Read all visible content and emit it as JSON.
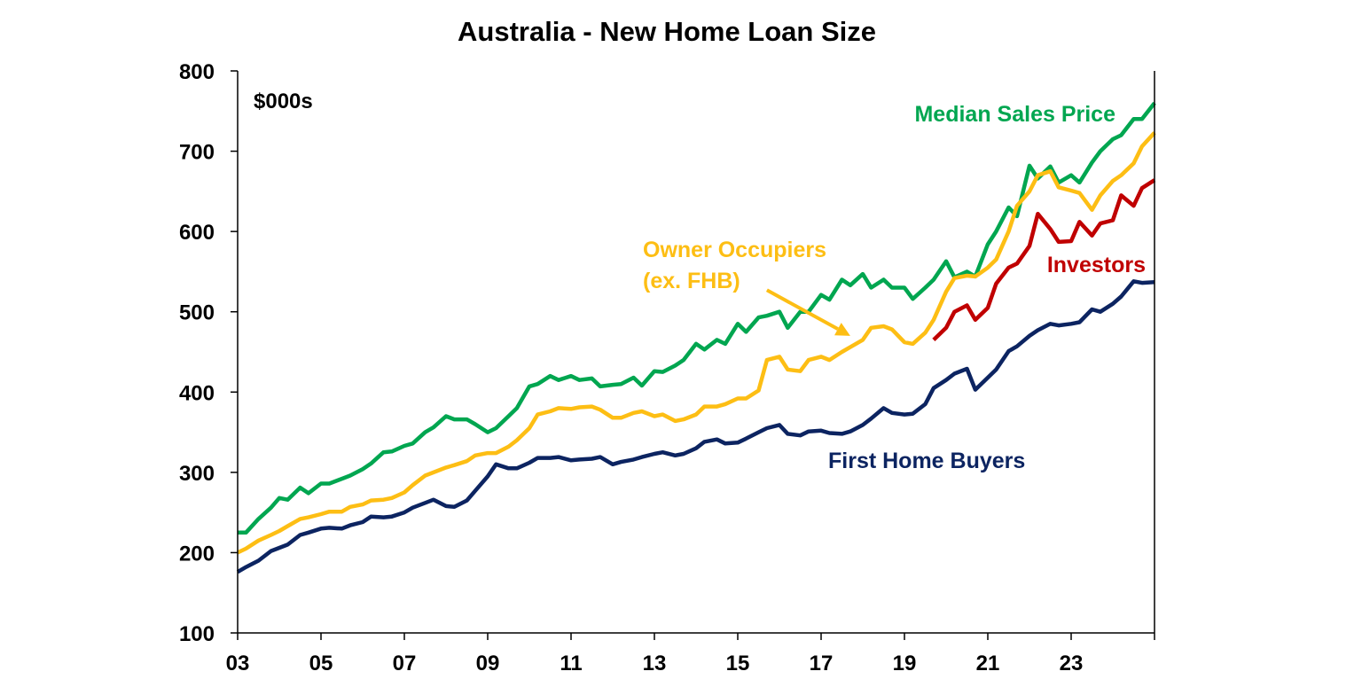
{
  "chart_data": {
    "type": "line",
    "title": "Australia - New Home Loan Size",
    "unit_label": "$000s",
    "xlabel": "",
    "ylabel": "",
    "xlim": [
      2003.0,
      2025.0
    ],
    "ylim": [
      100,
      800
    ],
    "yticks": [
      100,
      200,
      300,
      400,
      500,
      600,
      700,
      800
    ],
    "ytick_labels": [
      "100",
      "200",
      "300",
      "400",
      "500",
      "600",
      "700",
      "800"
    ],
    "xticks": [
      2003,
      2005,
      2007,
      2009,
      2011,
      2013,
      2015,
      2017,
      2019,
      2021,
      2023
    ],
    "xtick_labels": [
      "03",
      "05",
      "07",
      "09",
      "11",
      "13",
      "15",
      "17",
      "19",
      "21",
      "23"
    ],
    "grid": false,
    "legend": "none",
    "annotations": [
      {
        "text": "(ex. FHB)",
        "series": "Owner Occupiers",
        "arrow": true,
        "arrow_from": [
          2015.7,
          527
        ],
        "arrow_to": [
          2017.7,
          470
        ]
      }
    ],
    "series": [
      {
        "name": "Median Sales Price",
        "color": "#00A650",
        "x": [
          2003.0,
          2003.2,
          2003.5,
          2003.8,
          2004.0,
          2004.2,
          2004.5,
          2004.7,
          2005.0,
          2005.2,
          2005.5,
          2005.7,
          2006.0,
          2006.2,
          2006.5,
          2006.7,
          2007.0,
          2007.2,
          2007.5,
          2007.7,
          2008.0,
          2008.2,
          2008.5,
          2008.7,
          2009.0,
          2009.2,
          2009.5,
          2009.7,
          2010.0,
          2010.2,
          2010.5,
          2010.7,
          2011.0,
          2011.2,
          2011.5,
          2011.7,
          2012.0,
          2012.2,
          2012.5,
          2012.7,
          2013.0,
          2013.2,
          2013.5,
          2013.7,
          2014.0,
          2014.2,
          2014.5,
          2014.7,
          2015.0,
          2015.2,
          2015.5,
          2015.7,
          2016.0,
          2016.2,
          2016.5,
          2016.7,
          2017.0,
          2017.2,
          2017.5,
          2017.7,
          2018.0,
          2018.2,
          2018.5,
          2018.7,
          2019.0,
          2019.2,
          2019.5,
          2019.7,
          2020.0,
          2020.2,
          2020.5,
          2020.7,
          2021.0,
          2021.2,
          2021.5,
          2021.7,
          2022.0,
          2022.2,
          2022.5,
          2022.7,
          2023.0,
          2023.2,
          2023.5,
          2023.7,
          2024.0,
          2024.2,
          2024.5,
          2024.7,
          2025.0
        ],
        "values": [
          225,
          225,
          242,
          256,
          268,
          266,
          281,
          274,
          286,
          286,
          292,
          296,
          304,
          311,
          325,
          326,
          333,
          336,
          350,
          356,
          370,
          366,
          366,
          360,
          350,
          355,
          370,
          380,
          407,
          410,
          420,
          415,
          420,
          415,
          417,
          407,
          409,
          410,
          418,
          408,
          426,
          425,
          433,
          440,
          460,
          453,
          465,
          460,
          485,
          475,
          493,
          495,
          500,
          480,
          500,
          500,
          521,
          515,
          540,
          533,
          547,
          530,
          540,
          530,
          530,
          516,
          530,
          540,
          563,
          543,
          550,
          544,
          584,
          600,
          630,
          619,
          682,
          666,
          681,
          661,
          670,
          661,
          686,
          700,
          715,
          720,
          740,
          740,
          760
        ]
      },
      {
        "name": "Owner Occupiers",
        "color": "#FDBE14",
        "x": [
          2003.0,
          2003.2,
          2003.5,
          2003.8,
          2004.0,
          2004.2,
          2004.5,
          2004.7,
          2005.0,
          2005.2,
          2005.5,
          2005.7,
          2006.0,
          2006.2,
          2006.5,
          2006.7,
          2007.0,
          2007.2,
          2007.5,
          2007.7,
          2008.0,
          2008.2,
          2008.5,
          2008.7,
          2009.0,
          2009.2,
          2009.5,
          2009.7,
          2010.0,
          2010.2,
          2010.5,
          2010.7,
          2011.0,
          2011.2,
          2011.5,
          2011.7,
          2012.0,
          2012.2,
          2012.5,
          2012.7,
          2013.0,
          2013.2,
          2013.5,
          2013.7,
          2014.0,
          2014.2,
          2014.5,
          2014.7,
          2015.0,
          2015.2,
          2015.5,
          2015.7,
          2016.0,
          2016.2,
          2016.5,
          2016.7,
          2017.0,
          2017.2,
          2017.5,
          2017.7,
          2018.0,
          2018.2,
          2018.5,
          2018.7,
          2019.0,
          2019.2,
          2019.5,
          2019.7,
          2020.0,
          2020.2,
          2020.5,
          2020.7,
          2021.0,
          2021.2,
          2021.5,
          2021.7,
          2022.0,
          2022.2,
          2022.5,
          2022.7,
          2023.0,
          2023.2,
          2023.5,
          2023.7,
          2024.0,
          2024.2,
          2024.5,
          2024.7,
          2025.0
        ],
        "values": [
          200,
          205,
          215,
          222,
          227,
          233,
          242,
          244,
          248,
          251,
          251,
          257,
          260,
          265,
          266,
          268,
          275,
          284,
          296,
          300,
          306,
          309,
          314,
          321,
          324,
          324,
          332,
          340,
          355,
          372,
          376,
          380,
          379,
          381,
          382,
          378,
          368,
          368,
          374,
          376,
          370,
          372,
          364,
          366,
          372,
          382,
          382,
          385,
          392,
          392,
          402,
          440,
          444,
          428,
          426,
          440,
          444,
          440,
          450,
          456,
          465,
          480,
          482,
          478,
          462,
          460,
          474,
          490,
          525,
          542,
          545,
          544,
          555,
          565,
          600,
          632,
          650,
          670,
          675,
          655,
          651,
          648,
          627,
          645,
          663,
          670,
          685,
          706,
          723
        ]
      },
      {
        "name": "Investors",
        "color": "#C00000",
        "x": [
          2019.7,
          2020.0,
          2020.2,
          2020.5,
          2020.7,
          2021.0,
          2021.2,
          2021.5,
          2021.7,
          2022.0,
          2022.2,
          2022.5,
          2022.7,
          2023.0,
          2023.2,
          2023.5,
          2023.7,
          2024.0,
          2024.2,
          2024.5,
          2024.7,
          2025.0
        ],
        "values": [
          465,
          480,
          500,
          508,
          490,
          505,
          535,
          555,
          560,
          582,
          622,
          603,
          587,
          588,
          612,
          595,
          610,
          614,
          645,
          632,
          654,
          664
        ]
      },
      {
        "name": "First Home Buyers",
        "color": "#0C2461",
        "x": [
          2003.0,
          2003.2,
          2003.5,
          2003.8,
          2004.0,
          2004.2,
          2004.5,
          2004.7,
          2005.0,
          2005.2,
          2005.5,
          2005.7,
          2006.0,
          2006.2,
          2006.5,
          2006.7,
          2007.0,
          2007.2,
          2007.5,
          2007.7,
          2008.0,
          2008.2,
          2008.5,
          2008.7,
          2009.0,
          2009.2,
          2009.5,
          2009.7,
          2010.0,
          2010.2,
          2010.5,
          2010.7,
          2011.0,
          2011.2,
          2011.5,
          2011.7,
          2012.0,
          2012.2,
          2012.5,
          2012.7,
          2013.0,
          2013.2,
          2013.5,
          2013.7,
          2014.0,
          2014.2,
          2014.5,
          2014.7,
          2015.0,
          2015.2,
          2015.5,
          2015.7,
          2016.0,
          2016.2,
          2016.5,
          2016.7,
          2017.0,
          2017.2,
          2017.5,
          2017.7,
          2018.0,
          2018.2,
          2018.5,
          2018.7,
          2019.0,
          2019.2,
          2019.5,
          2019.7,
          2020.0,
          2020.2,
          2020.5,
          2020.7,
          2021.0,
          2021.2,
          2021.5,
          2021.7,
          2022.0,
          2022.2,
          2022.5,
          2022.7,
          2023.0,
          2023.2,
          2023.5,
          2023.7,
          2024.0,
          2024.2,
          2024.5,
          2024.7,
          2025.0
        ],
        "values": [
          176,
          182,
          190,
          202,
          206,
          210,
          222,
          225,
          230,
          231,
          230,
          234,
          238,
          245,
          244,
          245,
          250,
          256,
          262,
          266,
          258,
          257,
          265,
          277,
          295,
          310,
          305,
          305,
          312,
          318,
          318,
          319,
          315,
          316,
          317,
          319,
          310,
          313,
          316,
          319,
          323,
          325,
          321,
          323,
          330,
          338,
          341,
          336,
          337,
          342,
          350,
          355,
          359,
          348,
          346,
          351,
          352,
          349,
          348,
          351,
          359,
          367,
          380,
          374,
          372,
          373,
          385,
          405,
          415,
          423,
          429,
          403,
          418,
          428,
          451,
          457,
          470,
          477,
          485,
          483,
          485,
          487,
          503,
          500,
          510,
          519,
          538,
          536,
          537
        ]
      }
    ]
  }
}
